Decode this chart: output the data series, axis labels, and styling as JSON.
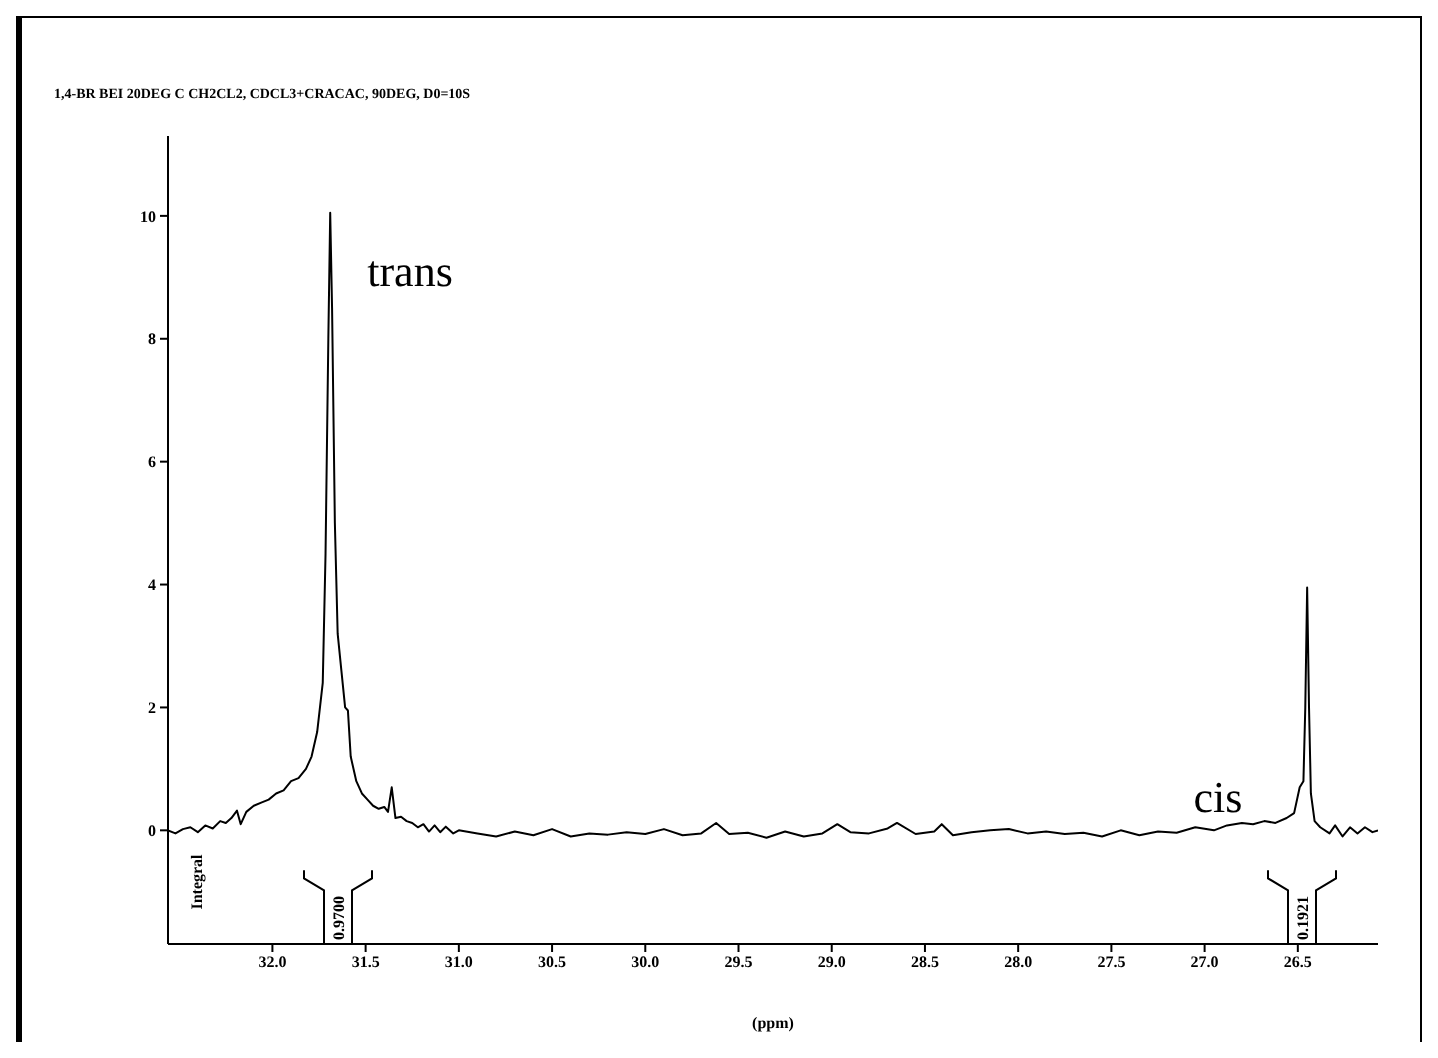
{
  "chart_data": {
    "type": "line",
    "title": "1,4-BR BEI 20DEG C CH2CL2, CDCL3+CRACAC, 90DEG, D0=10S",
    "xlabel": "(ppm)",
    "color": "#000000",
    "x": [
      32.56,
      32.52,
      32.48,
      32.44,
      32.4,
      32.36,
      32.32,
      32.28,
      32.25,
      32.22,
      32.19,
      32.17,
      32.14,
      32.1,
      32.06,
      32.02,
      31.98,
      31.94,
      31.9,
      31.86,
      31.82,
      31.79,
      31.76,
      31.73,
      31.715,
      31.7,
      31.69,
      31.68,
      31.665,
      31.65,
      31.63,
      31.61,
      31.595,
      31.58,
      31.55,
      31.52,
      31.49,
      31.46,
      31.43,
      31.4,
      31.38,
      31.36,
      31.34,
      31.31,
      31.28,
      31.25,
      31.22,
      31.19,
      31.16,
      31.13,
      31.1,
      31.07,
      31.03,
      31.0,
      30.9,
      30.8,
      30.7,
      30.6,
      30.5,
      30.4,
      30.3,
      30.2,
      30.1,
      30.0,
      29.9,
      29.8,
      29.7,
      29.62,
      29.55,
      29.45,
      29.35,
      29.25,
      29.15,
      29.05,
      28.97,
      28.9,
      28.8,
      28.7,
      28.65,
      28.55,
      28.45,
      28.41,
      28.35,
      28.25,
      28.15,
      28.05,
      27.95,
      27.85,
      27.75,
      27.65,
      27.55,
      27.45,
      27.35,
      27.25,
      27.15,
      27.05,
      26.95,
      26.88,
      26.8,
      26.74,
      26.68,
      26.62,
      26.56,
      26.52,
      26.49,
      26.47,
      26.46,
      26.45,
      26.44,
      26.43,
      26.41,
      26.38,
      26.33,
      26.3,
      26.26,
      26.22,
      26.18,
      26.14,
      26.1,
      26.07
    ],
    "values": [
      0.0,
      -0.05,
      0.02,
      0.05,
      -0.03,
      0.08,
      0.03,
      0.15,
      0.12,
      0.2,
      0.32,
      0.1,
      0.3,
      0.4,
      0.45,
      0.5,
      0.6,
      0.65,
      0.8,
      0.85,
      1.0,
      1.2,
      1.6,
      2.4,
      4.5,
      8.0,
      10.05,
      8.5,
      5.0,
      3.2,
      2.6,
      2.0,
      1.95,
      1.2,
      0.8,
      0.6,
      0.5,
      0.4,
      0.35,
      0.38,
      0.3,
      0.7,
      0.2,
      0.22,
      0.15,
      0.12,
      0.05,
      0.1,
      -0.02,
      0.08,
      -0.03,
      0.06,
      -0.05,
      0.0,
      -0.05,
      -0.1,
      -0.02,
      -0.08,
      0.02,
      -0.1,
      -0.05,
      -0.07,
      -0.03,
      -0.06,
      0.02,
      -0.08,
      -0.05,
      0.12,
      -0.06,
      -0.04,
      -0.12,
      -0.02,
      -0.1,
      -0.05,
      0.1,
      -0.03,
      -0.05,
      0.03,
      0.12,
      -0.06,
      -0.02,
      0.1,
      -0.08,
      -0.03,
      0.0,
      0.02,
      -0.05,
      -0.02,
      -0.06,
      -0.04,
      -0.1,
      0.0,
      -0.08,
      -0.02,
      -0.04,
      0.05,
      0.0,
      0.08,
      0.12,
      0.1,
      0.15,
      0.12,
      0.2,
      0.28,
      0.7,
      0.8,
      2.0,
      3.95,
      2.0,
      0.6,
      0.15,
      0.05,
      -0.05,
      0.08,
      -0.1,
      0.05,
      -0.05,
      0.05,
      -0.03,
      0.0
    ],
    "xlim": [
      32.56,
      26.07
    ],
    "ylim": [
      -1.85,
      11.3
    ],
    "xticks": [
      {
        "value": 32,
        "label": "32.0"
      },
      31.5,
      {
        "value": 31,
        "label": "31.0"
      },
      30.5,
      {
        "value": 30,
        "label": "30.0"
      },
      29.5,
      {
        "value": 29,
        "label": "29.0"
      },
      28.5,
      {
        "value": 28,
        "label": "28.0"
      },
      27.5,
      {
        "value": 27,
        "label": "27.0"
      },
      26.5
    ],
    "yticks": [
      0,
      2,
      4,
      6,
      8,
      10
    ],
    "annotations": [
      "trans",
      "cis",
      "Integral",
      "0.9700",
      "0.1921"
    ]
  }
}
